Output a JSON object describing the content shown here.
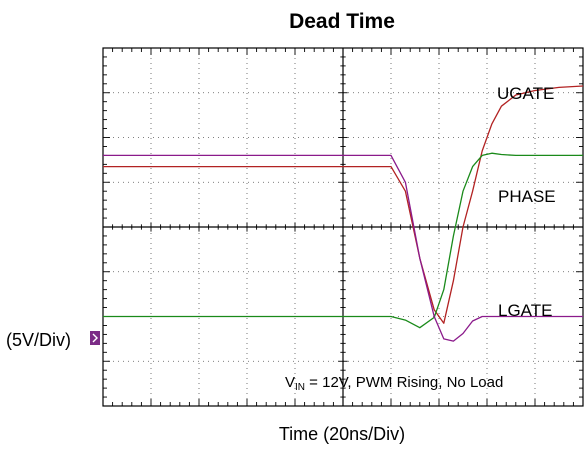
{
  "chart_data": {
    "type": "line",
    "title": "Dead Time",
    "xlabel": "Time  (20ns/Div)",
    "ylabel": "(5V/Div)",
    "x_unit": "div",
    "y_unit": "div",
    "xlim": [
      0,
      10
    ],
    "ylim": [
      0,
      8
    ],
    "grid": true,
    "annotation": {
      "prefix": "V",
      "subscript": "IN",
      "text": " = 12V, PWM Rising, No Load"
    },
    "series": [
      {
        "name": "UGATE",
        "color": "#b22222",
        "x": [
          0,
          1,
          2,
          3,
          4,
          5,
          6,
          6.3,
          6.6,
          6.9,
          7.1,
          7.3,
          7.5,
          7.7,
          7.9,
          8.1,
          8.3,
          8.6,
          9.0,
          9.5,
          10
        ],
        "y": [
          5.35,
          5.35,
          5.35,
          5.35,
          5.35,
          5.35,
          5.35,
          4.8,
          3.3,
          2.15,
          1.85,
          2.8,
          4.0,
          4.8,
          5.7,
          6.3,
          6.7,
          6.95,
          7.05,
          7.12,
          7.15
        ]
      },
      {
        "name": "PHASE",
        "color": "#1a8a1a",
        "x": [
          0,
          1,
          2,
          3,
          4,
          5,
          6,
          6.3,
          6.6,
          6.9,
          7.1,
          7.3,
          7.5,
          7.7,
          7.9,
          8.1,
          8.3,
          8.6,
          9.0,
          9.5,
          10
        ],
        "y": [
          2.0,
          2.0,
          2.0,
          2.0,
          2.0,
          2.0,
          2.0,
          1.92,
          1.75,
          1.98,
          2.6,
          3.8,
          4.8,
          5.35,
          5.6,
          5.65,
          5.62,
          5.6,
          5.6,
          5.6,
          5.6
        ]
      },
      {
        "name": "LGATE",
        "color": "#8b1a8b",
        "x": [
          0,
          1,
          2,
          3,
          4,
          5,
          6,
          6.3,
          6.6,
          6.9,
          7.1,
          7.3,
          7.5,
          7.7,
          7.9,
          8.1,
          8.3,
          8.6,
          9.0,
          9.5,
          10
        ],
        "y": [
          5.6,
          5.6,
          5.6,
          5.6,
          5.6,
          5.6,
          5.6,
          5.0,
          3.3,
          2.0,
          1.5,
          1.45,
          1.62,
          1.9,
          2.0,
          2.0,
          2.0,
          2.0,
          2.0,
          2.0,
          2.0
        ]
      }
    ],
    "labels": [
      "UGATE",
      "PHASE",
      "LGATE"
    ],
    "marker_color": "#7b2b86"
  }
}
